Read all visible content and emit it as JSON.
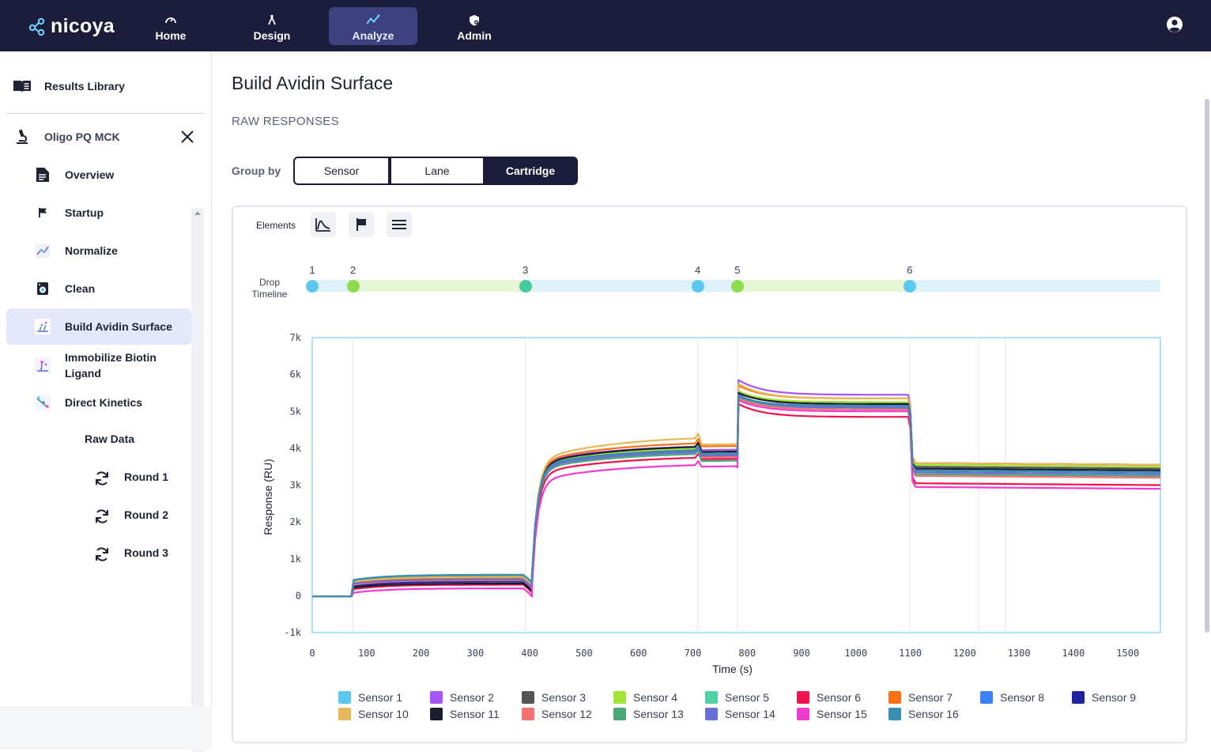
{
  "brand": {
    "logo_text": "nicoya"
  },
  "nav": {
    "items": [
      {
        "label": "Home",
        "icon": "gauge-icon"
      },
      {
        "label": "Design",
        "icon": "compass-icon"
      },
      {
        "label": "Analyze",
        "icon": "chart-line-icon",
        "active": true
      },
      {
        "label": "Admin",
        "icon": "shield-gear-icon"
      }
    ],
    "account_icon": "account-circle-icon"
  },
  "sidebar": {
    "library_label": "Results Library",
    "experiment_label": "Oligo PQ MCK",
    "items": [
      {
        "label": "Overview",
        "icon": "document-icon"
      },
      {
        "label": "Startup",
        "icon": "flag-icon"
      },
      {
        "label": "Normalize",
        "icon": "normalize-icon"
      },
      {
        "label": "Clean",
        "icon": "clean-icon"
      },
      {
        "label": "Build Avidin Surface",
        "icon": "surface-icon",
        "active": true
      },
      {
        "label": "Immobilize Biotin Ligand",
        "icon": "ligand-icon"
      },
      {
        "label": "Direct Kinetics",
        "icon": "kinetics-icon"
      }
    ],
    "raw_data_label": "Raw Data",
    "rounds": [
      {
        "label": "Round 1",
        "icon": "refresh-icon"
      },
      {
        "label": "Round 2",
        "icon": "refresh-icon"
      },
      {
        "label": "Round 3",
        "icon": "refresh-icon"
      }
    ]
  },
  "main": {
    "title": "Build Avidin Surface",
    "section_title": "RAW RESPONSES",
    "group_by": {
      "label": "Group by",
      "options": [
        "Sensor",
        "Lane",
        "Cartridge"
      ],
      "selected": "Cartridge"
    },
    "elements_label": "Elements",
    "drop_timeline": {
      "label_line1": "Drop",
      "label_line2": "Timeline",
      "drops": [
        {
          "num": "1",
          "time": 0,
          "color": "#5bc8ef"
        },
        {
          "num": "2",
          "time": 75,
          "color": "#8fdc4f"
        },
        {
          "num": "3",
          "time": 392,
          "color": "#47c9a0"
        },
        {
          "num": "4",
          "time": 709,
          "color": "#5bc8ef"
        },
        {
          "num": "5",
          "time": 782,
          "color": "#8fdc4f"
        },
        {
          "num": "6",
          "time": 1099,
          "color": "#5bc8ef"
        }
      ]
    }
  },
  "chart_data": {
    "type": "line",
    "xlabel": "Time (s)",
    "ylabel": "Response (RU)",
    "xlim": [
      0,
      1560
    ],
    "ylim": [
      -1000,
      7000
    ],
    "x_ticks": [
      0,
      100,
      200,
      300,
      400,
      500,
      600,
      700,
      800,
      900,
      1000,
      1100,
      1200,
      1300,
      1400,
      1500
    ],
    "y_ticks": [
      -1000,
      0,
      1000,
      2000,
      3000,
      4000,
      5000,
      6000,
      7000
    ],
    "y_tick_labels": [
      "-1k",
      "0",
      "1k",
      "2k",
      "3k",
      "4k",
      "5k",
      "6k",
      "7k"
    ],
    "grid": "vertical",
    "legend_position": "bottom",
    "series": [
      {
        "name": "Sensor 1",
        "color": "#5bc8ef",
        "values": [
          0,
          420,
          550,
          3450,
          3900,
          4050,
          5350,
          5100,
          3450,
          3400
        ]
      },
      {
        "name": "Sensor 2",
        "color": "#a855f7",
        "values": [
          0,
          380,
          500,
          3600,
          4100,
          4150,
          5850,
          5450,
          3600,
          3550
        ]
      },
      {
        "name": "Sensor 3",
        "color": "#555555",
        "values": [
          0,
          360,
          470,
          3550,
          4000,
          4050,
          5500,
          5250,
          3500,
          3450
        ]
      },
      {
        "name": "Sensor 4",
        "color": "#a3e635",
        "values": [
          0,
          400,
          530,
          3550,
          4050,
          4050,
          5550,
          5250,
          3550,
          3500
        ]
      },
      {
        "name": "Sensor 5",
        "color": "#4fd1a5",
        "values": [
          0,
          410,
          540,
          3500,
          3950,
          3950,
          5450,
          5100,
          3400,
          3350
        ]
      },
      {
        "name": "Sensor 6",
        "color": "#f0134d",
        "values": [
          0,
          180,
          300,
          3300,
          3800,
          3900,
          5200,
          4850,
          3050,
          3000
        ]
      },
      {
        "name": "Sensor 7",
        "color": "#f97316",
        "values": [
          0,
          350,
          460,
          3600,
          4200,
          4250,
          5700,
          5350,
          3600,
          3550
        ]
      },
      {
        "name": "Sensor 8",
        "color": "#3b82f6",
        "values": [
          0,
          400,
          520,
          3500,
          3950,
          3950,
          5400,
          5100,
          3300,
          3250
        ]
      },
      {
        "name": "Sensor 9",
        "color": "#1e22a0",
        "values": [
          0,
          260,
          380,
          3500,
          4000,
          4000,
          5400,
          5150,
          3400,
          3350
        ]
      },
      {
        "name": "Sensor 10",
        "color": "#e5b85a",
        "values": [
          0,
          380,
          510,
          3650,
          4350,
          4300,
          5750,
          5350,
          3600,
          3550
        ]
      },
      {
        "name": "Sensor 11",
        "color": "#1b1d2e",
        "values": [
          0,
          220,
          330,
          3550,
          4100,
          4100,
          5500,
          5200,
          3450,
          3400
        ]
      },
      {
        "name": "Sensor 12",
        "color": "#f87171",
        "values": [
          0,
          300,
          420,
          3450,
          3950,
          3950,
          5350,
          5050,
          3250,
          3200
        ]
      },
      {
        "name": "Sensor 13",
        "color": "#4aa878",
        "values": [
          0,
          420,
          560,
          3400,
          3900,
          3850,
          5400,
          5100,
          3300,
          3250
        ]
      },
      {
        "name": "Sensor 14",
        "color": "#6a6fd8",
        "values": [
          0,
          330,
          440,
          3450,
          3950,
          4000,
          5450,
          5100,
          3350,
          3300
        ]
      },
      {
        "name": "Sensor 15",
        "color": "#f03ad0",
        "values": [
          0,
          80,
          200,
          3100,
          3600,
          3700,
          5300,
          5000,
          2950,
          2900
        ]
      },
      {
        "name": "Sensor 16",
        "color": "#3a8fb0",
        "values": [
          0,
          430,
          570,
          3500,
          4000,
          4050,
          5400,
          5150,
          3400,
          3350
        ]
      }
    ]
  }
}
